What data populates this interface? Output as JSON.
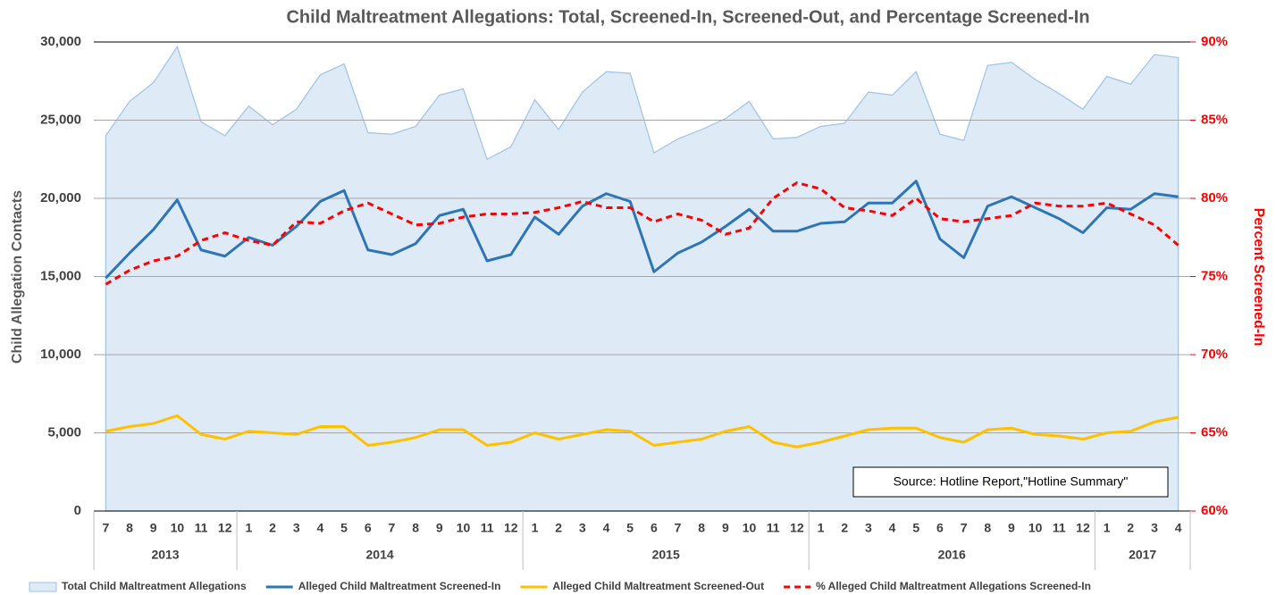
{
  "chart_data": {
    "type": "line",
    "title": "Child Maltreatment Allegations:  Total, Screened-In, Screened-Out, and Percentage Screened-In",
    "y_label": "Child Allegation Contacts",
    "y2_label": "Percent Screened-In",
    "annotations": [
      "Source: Hotline Report,\"Hotline Summary\""
    ],
    "categories": [
      "7",
      "8",
      "9",
      "10",
      "11",
      "12",
      "1",
      "2",
      "3",
      "4",
      "5",
      "6",
      "7",
      "8",
      "9",
      "10",
      "11",
      "12",
      "1",
      "2",
      "3",
      "4",
      "5",
      "6",
      "7",
      "8",
      "9",
      "10",
      "11",
      "12",
      "1",
      "2",
      "3",
      "4",
      "5",
      "6",
      "7",
      "8",
      "9",
      "10",
      "11",
      "12",
      "1",
      "2",
      "3",
      "4"
    ],
    "year_labels": [
      "2013",
      "2014",
      "2015",
      "2016",
      "2017"
    ],
    "ylim": [
      0,
      30000
    ],
    "yticks": [
      0,
      {
        "value": 5000,
        "label": "5,000"
      },
      {
        "value": 10000,
        "label": "10,000"
      },
      {
        "value": 15000,
        "label": "15,000"
      },
      {
        "value": 20000,
        "label": "20,000"
      },
      {
        "value": 25000,
        "label": "25,000"
      },
      {
        "value": 30000,
        "label": "30,000"
      }
    ],
    "y2lim": [
      60,
      90
    ],
    "y2ticks": [
      {
        "value": 60,
        "label": "60%"
      },
      {
        "value": 65,
        "label": "65%"
      },
      {
        "value": 70,
        "label": "70%"
      },
      {
        "value": 75,
        "label": "75%"
      },
      {
        "value": 80,
        "label": "80%"
      },
      {
        "value": 85,
        "label": "85%"
      },
      {
        "value": 90,
        "label": "90%"
      }
    ],
    "grid": true,
    "legend": "bottom",
    "series": [
      {
        "name": "Total Child Maltreatment Allegations",
        "type": "area",
        "color": "#9dc3e6",
        "fill": "#deebf7",
        "values": [
          24000,
          26200,
          27400,
          29700,
          24900,
          24000,
          25900,
          24700,
          25700,
          27900,
          28600,
          24200,
          24100,
          24600,
          26600,
          27000,
          22500,
          23300,
          26300,
          24400,
          26800,
          28100,
          28000,
          22900,
          23800,
          24400,
          25100,
          26200,
          23800,
          23900,
          24600,
          24800,
          26800,
          26600,
          28100,
          24100,
          23700,
          28500,
          28700,
          27600,
          26700,
          25700,
          27800,
          27300,
          29200,
          29000
        ]
      },
      {
        "name": "Alleged Child Maltreatment Screened-In",
        "color": "#2e75b6",
        "values": [
          14900,
          16500,
          18000,
          19900,
          16700,
          16300,
          17500,
          17000,
          18200,
          19800,
          20500,
          16700,
          16400,
          17100,
          18900,
          19300,
          16000,
          16400,
          18800,
          17700,
          19500,
          20300,
          19800,
          15300,
          16500,
          17200,
          18200,
          19300,
          17900,
          17900,
          18400,
          18500,
          19700,
          19700,
          21100,
          17400,
          16200,
          19500,
          20100,
          19400,
          18700,
          17800,
          19400,
          19300,
          20300,
          20100
        ]
      },
      {
        "name": "Alleged Child Maltreatment Screened-Out",
        "color": "#ffc000",
        "values": [
          5100,
          5400,
          5600,
          6100,
          4900,
          4600,
          5100,
          5000,
          4900,
          5400,
          5400,
          4200,
          4400,
          4700,
          5200,
          5200,
          4200,
          4400,
          5000,
          4600,
          4900,
          5200,
          5100,
          4200,
          4400,
          4600,
          5100,
          5400,
          4400,
          4100,
          4400,
          4800,
          5200,
          5300,
          5300,
          4700,
          4400,
          5200,
          5300,
          4900,
          4800,
          4600,
          5000,
          5100,
          5700,
          6000
        ]
      },
      {
        "name": "% Alleged Child Maltreatment Allegations Screened-In",
        "color": "#ff0000",
        "line_style": "dashed",
        "axis": "y2",
        "values": [
          74.5,
          75.4,
          76.0,
          76.3,
          77.3,
          77.8,
          77.3,
          77.0,
          78.5,
          78.4,
          79.2,
          79.7,
          79.0,
          78.3,
          78.4,
          78.8,
          79.0,
          79.0,
          79.1,
          79.4,
          79.8,
          79.4,
          79.4,
          78.5,
          79.0,
          78.6,
          77.7,
          78.1,
          80.0,
          81.0,
          80.6,
          79.4,
          79.2,
          78.9,
          80.0,
          78.7,
          78.5,
          78.7,
          78.9,
          79.7,
          79.5,
          79.5,
          79.7,
          79.0,
          78.3,
          77.0
        ]
      }
    ]
  }
}
